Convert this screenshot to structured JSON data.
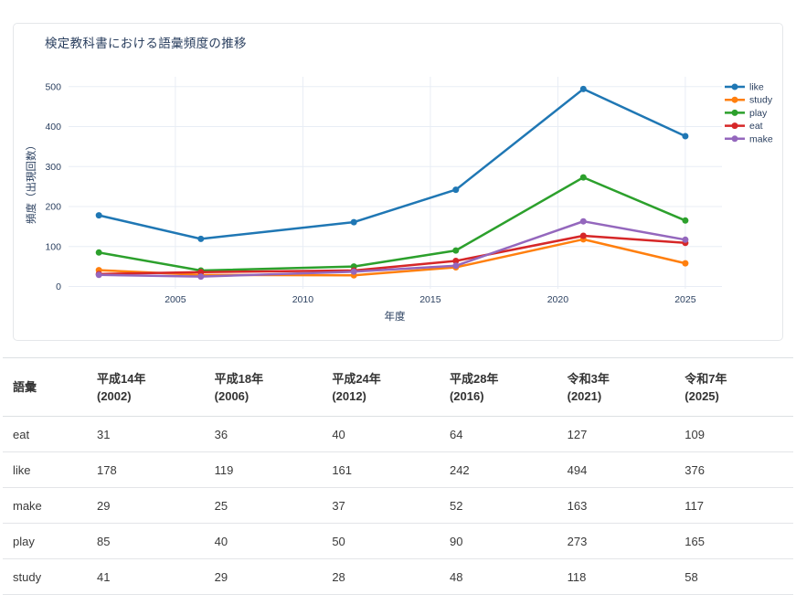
{
  "chart": {
    "title": "検定教科書における語彙頻度の推移",
    "xlabel": "年度",
    "ylabel": "頻度（出現回数）",
    "x_tick_labels": [
      "2005",
      "2010",
      "2015",
      "2020",
      "2025"
    ],
    "y_tick_labels": [
      "0",
      "100",
      "200",
      "300",
      "400",
      "500"
    ],
    "colors": {
      "grid": "#e8edf5",
      "text": "#2a3f5f",
      "card_border": "#e5e7ea"
    }
  },
  "chart_data": {
    "type": "line",
    "x": [
      2002,
      2006,
      2012,
      2016,
      2021,
      2025
    ],
    "x_ticks": [
      2005,
      2010,
      2015,
      2020,
      2025
    ],
    "y_ticks": [
      0,
      100,
      200,
      300,
      400,
      500
    ],
    "xlim": [
      2000.8,
      2026.4
    ],
    "ylim": [
      0,
      530
    ],
    "grid": true,
    "legend_position": "right-outside",
    "marker": "circle",
    "title": "検定教科書における語彙頻度の推移",
    "xlabel": "年度",
    "ylabel": "頻度（出現回数）",
    "series": [
      {
        "name": "like",
        "color": "#1f77b4",
        "values": [
          178,
          119,
          161,
          242,
          494,
          376
        ]
      },
      {
        "name": "study",
        "color": "#ff7f0e",
        "values": [
          41,
          29,
          28,
          48,
          118,
          58
        ]
      },
      {
        "name": "play",
        "color": "#2ca02c",
        "values": [
          85,
          40,
          50,
          90,
          273,
          165
        ]
      },
      {
        "name": "eat",
        "color": "#d62728",
        "values": [
          31,
          36,
          40,
          64,
          127,
          109
        ]
      },
      {
        "name": "make",
        "color": "#9467bd",
        "values": [
          29,
          25,
          37,
          52,
          163,
          117
        ]
      }
    ]
  },
  "table": {
    "columns": [
      {
        "label_top": "語彙",
        "label_bottom": ""
      },
      {
        "label_top": "平成14年",
        "label_bottom": "(2002)"
      },
      {
        "label_top": "平成18年",
        "label_bottom": "(2006)"
      },
      {
        "label_top": "平成24年",
        "label_bottom": "(2012)"
      },
      {
        "label_top": "平成28年",
        "label_bottom": "(2016)"
      },
      {
        "label_top": "令和3年",
        "label_bottom": "(2021)"
      },
      {
        "label_top": "令和7年",
        "label_bottom": "(2025)"
      }
    ],
    "rows": [
      {
        "word": "eat",
        "values": [
          31,
          36,
          40,
          64,
          127,
          109
        ]
      },
      {
        "word": "like",
        "values": [
          178,
          119,
          161,
          242,
          494,
          376
        ]
      },
      {
        "word": "make",
        "values": [
          29,
          25,
          37,
          52,
          163,
          117
        ]
      },
      {
        "word": "play",
        "values": [
          85,
          40,
          50,
          90,
          273,
          165
        ]
      },
      {
        "word": "study",
        "values": [
          41,
          29,
          28,
          48,
          118,
          58
        ]
      }
    ]
  }
}
